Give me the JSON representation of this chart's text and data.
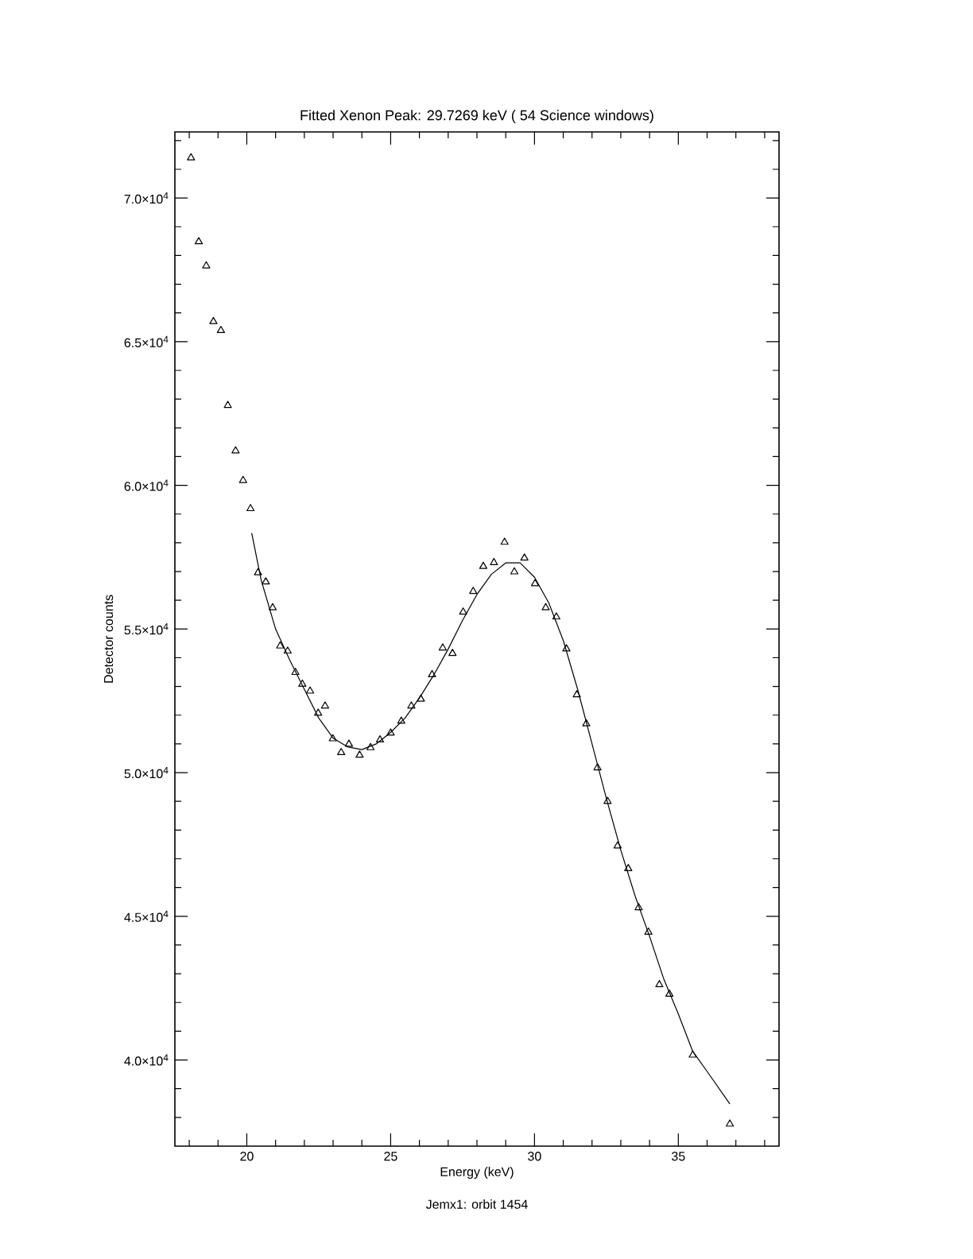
{
  "chart_data": {
    "type": "scatter",
    "title": "Fitted Xenon Peak: 29.7269 keV ( 54 Science windows)",
    "xlabel": "Energy (keV)",
    "ylabel": "Detector counts",
    "annotations": [
      "Jemx1: orbit 1454"
    ],
    "xlim": [
      17.5,
      38.5
    ],
    "ylim": [
      37000,
      72300
    ],
    "xticks": [
      {
        "value": 18,
        "label": null
      },
      {
        "value": 19,
        "label": null
      },
      20,
      {
        "value": 21,
        "label": null
      },
      {
        "value": 22,
        "label": null
      },
      {
        "value": 23,
        "label": null
      },
      {
        "value": 24,
        "label": null
      },
      25,
      {
        "value": 26,
        "label": null
      },
      {
        "value": 27,
        "label": null
      },
      {
        "value": 28,
        "label": null
      },
      {
        "value": 29,
        "label": null
      },
      30,
      {
        "value": 31,
        "label": null
      },
      {
        "value": 32,
        "label": null
      },
      {
        "value": 33,
        "label": null
      },
      {
        "value": 34,
        "label": null
      },
      35,
      {
        "value": 36,
        "label": null
      },
      {
        "value": 37,
        "label": null
      },
      {
        "value": 38,
        "label": null
      }
    ],
    "yticks": [
      {
        "value": 38000,
        "label": null
      },
      {
        "value": 39000,
        "label": null
      },
      {
        "value": 40000,
        "label": "4.0×10$^{4}$"
      },
      {
        "value": 41000,
        "label": null
      },
      {
        "value": 42000,
        "label": null
      },
      {
        "value": 43000,
        "label": null
      },
      {
        "value": 44000,
        "label": null
      },
      {
        "value": 45000,
        "label": "4.5×10$^{4}$"
      },
      {
        "value": 46000,
        "label": null
      },
      {
        "value": 47000,
        "label": null
      },
      {
        "value": 48000,
        "label": null
      },
      {
        "value": 49000,
        "label": null
      },
      {
        "value": 50000,
        "label": "5.0×10$^{4}$"
      },
      {
        "value": 51000,
        "label": null
      },
      {
        "value": 52000,
        "label": null
      },
      {
        "value": 53000,
        "label": null
      },
      {
        "value": 54000,
        "label": null
      },
      {
        "value": 55000,
        "label": "5.5×10$^{4}$"
      },
      {
        "value": 56000,
        "label": null
      },
      {
        "value": 57000,
        "label": null
      },
      {
        "value": 58000,
        "label": null
      },
      {
        "value": 59000,
        "label": null
      },
      {
        "value": 60000,
        "label": "6.0×10$^{4}$"
      },
      {
        "value": 61000,
        "label": null
      },
      {
        "value": 62000,
        "label": null
      },
      {
        "value": 63000,
        "label": null
      },
      {
        "value": 64000,
        "label": null
      },
      {
        "value": 65000,
        "label": "6.5×10$^{4}$"
      },
      {
        "value": 66000,
        "label": null
      },
      {
        "value": 67000,
        "label": null
      },
      {
        "value": 68000,
        "label": null
      },
      {
        "value": 69000,
        "label": null
      },
      {
        "value": 70000,
        "label": "7.0×10$^{4}$"
      },
      {
        "value": 71000,
        "label": null
      },
      {
        "value": 72000,
        "label": null
      }
    ],
    "grid": false,
    "series": [
      {
        "color": "#000000",
        "marker": "triangle",
        "x": [
          18.06,
          18.33,
          18.59,
          18.84,
          19.1,
          19.34,
          19.61,
          19.87,
          20.13,
          20.39,
          20.66,
          20.9,
          21.16,
          21.42,
          21.69,
          21.93,
          22.2,
          22.48,
          22.72,
          22.99,
          23.28,
          23.55,
          23.92,
          24.3,
          24.63,
          25.0,
          25.37,
          25.72,
          26.05,
          26.44,
          26.81,
          27.15,
          27.52,
          27.87,
          28.22,
          28.59,
          28.96,
          29.3,
          29.65,
          30.02,
          30.39,
          30.76,
          31.11,
          31.47,
          31.8,
          32.19,
          32.54,
          32.89,
          33.26,
          33.62,
          33.96,
          34.34,
          34.69,
          35.5,
          36.79
        ],
        "values": [
          71400,
          68480,
          67640,
          65700,
          65390,
          62780,
          61200,
          60170,
          59190,
          56960,
          56640,
          55740,
          54410,
          54230,
          53490,
          53080,
          52840,
          52070,
          52320,
          51180,
          50700,
          50990,
          50610,
          50870,
          51140,
          51380,
          51790,
          52320,
          52560,
          53410,
          54340,
          54150,
          55590,
          56310,
          57180,
          57310,
          58020,
          56990,
          57470,
          56580,
          55740,
          55420,
          54310,
          52710,
          51700,
          50170,
          49000,
          47450,
          46660,
          45300,
          44450,
          42620,
          42290,
          40170,
          37770
        ]
      },
      {
        "type": "line",
        "color": "#000000",
        "marker": "none",
        "line_style": "solid",
        "x": [
          20.17,
          20.5,
          21.0,
          21.5,
          22.0,
          22.5,
          23.0,
          23.5,
          24.0,
          24.5,
          25.0,
          25.5,
          26.0,
          26.5,
          27.0,
          27.5,
          28.0,
          28.5,
          29.0,
          29.5,
          30.0,
          30.5,
          31.0,
          31.5,
          32.0,
          32.5,
          33.0,
          33.5,
          34.0,
          34.5,
          35.0,
          35.5,
          36.0,
          36.79
        ],
        "values": [
          58340,
          56700,
          55000,
          53900,
          52900,
          51900,
          51200,
          50900,
          50800,
          51000,
          51400,
          51900,
          52600,
          53400,
          54300,
          55300,
          56200,
          56900,
          57300,
          57300,
          56800,
          55900,
          54600,
          52900,
          51000,
          49100,
          47300,
          45700,
          44300,
          42800,
          41600,
          40300,
          39600,
          38470
        ]
      }
    ]
  }
}
